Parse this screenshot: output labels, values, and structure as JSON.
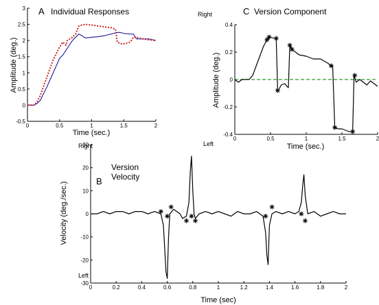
{
  "chart_data": [
    {
      "panel": "A",
      "type": "line",
      "title": "Individual Responses",
      "xlabel": "Time (sec.)",
      "ylabel": "Amplitude (deg.)",
      "xlim": [
        0,
        2
      ],
      "ylim": [
        -0.5,
        3
      ],
      "xticks": [
        "0",
        "0.5",
        "1",
        "1.5",
        "2"
      ],
      "yticks": [
        "-0.5",
        "0",
        "0.5",
        "1",
        "1.5",
        "2",
        "2.5",
        "3"
      ],
      "grid": false,
      "series": [
        {
          "color": "#2a2aa0",
          "dash": "solid",
          "x": [
            0,
            0.1,
            0.15,
            0.2,
            0.3,
            0.4,
            0.5,
            0.55,
            0.6,
            0.65,
            0.7,
            0.75,
            0.8,
            0.85,
            0.9,
            1.0,
            1.1,
            1.2,
            1.3,
            1.4,
            1.45,
            1.5,
            1.6,
            1.65,
            1.7,
            1.8,
            1.9,
            2.0
          ],
          "y": [
            0,
            0,
            0.05,
            0.15,
            0.55,
            1.0,
            1.45,
            1.55,
            1.7,
            1.85,
            2.0,
            2.1,
            2.2,
            2.15,
            2.08,
            2.1,
            2.12,
            2.15,
            2.2,
            2.25,
            2.25,
            2.22,
            2.2,
            2.2,
            2.05,
            2.05,
            2.05,
            2.0
          ]
        },
        {
          "color": "#cc2020",
          "dash": "dotted",
          "x": [
            0,
            0.1,
            0.15,
            0.2,
            0.3,
            0.4,
            0.5,
            0.55,
            0.6,
            0.62,
            0.7,
            0.75,
            0.8,
            0.85,
            0.9,
            1.0,
            1.1,
            1.2,
            1.3,
            1.37,
            1.4,
            1.45,
            1.5,
            1.6,
            1.65,
            1.7,
            1.8,
            1.9,
            2.0
          ],
          "y": [
            0,
            0,
            0.1,
            0.3,
            0.85,
            1.4,
            1.8,
            1.95,
            1.85,
            2.0,
            2.1,
            2.2,
            2.45,
            2.48,
            2.5,
            2.48,
            2.45,
            2.42,
            2.4,
            2.35,
            1.95,
            1.9,
            1.9,
            1.95,
            2.1,
            2.1,
            2.05,
            2.02,
            2.0
          ]
        }
      ]
    },
    {
      "panel": "C",
      "type": "line",
      "title": "Version Component",
      "xlabel": "Time (sec.)",
      "ylabel": "Amplitude (deg.)",
      "xlim": [
        0,
        2
      ],
      "ylim": [
        -0.4,
        0.4
      ],
      "xticks": [
        "0",
        "0.5",
        "1",
        "1.5",
        "2"
      ],
      "yticks": [
        "-0.4",
        "-0.2",
        "0",
        "0.2",
        "0.4"
      ],
      "side_labels": {
        "top": "Right",
        "bottom": "Left"
      },
      "grid": false,
      "reference_line": {
        "y": 0,
        "color": "#2a9a2a",
        "dash": "dashed"
      },
      "series": [
        {
          "color": "#000000",
          "dash": "solid",
          "x": [
            0,
            0.05,
            0.1,
            0.2,
            0.25,
            0.3,
            0.35,
            0.4,
            0.45,
            0.5,
            0.55,
            0.58,
            0.6,
            0.62,
            0.65,
            0.7,
            0.73,
            0.75,
            0.77,
            0.8,
            0.85,
            0.9,
            1.0,
            1.1,
            1.2,
            1.3,
            1.35,
            1.37,
            1.4,
            1.45,
            1.5,
            1.55,
            1.6,
            1.65,
            1.67,
            1.7,
            1.75,
            1.8,
            1.85,
            1.9,
            1.95,
            2.0
          ],
          "y": [
            0,
            -0.02,
            0,
            0,
            0.03,
            0.1,
            0.17,
            0.24,
            0.29,
            0.31,
            0.3,
            0.3,
            -0.08,
            -0.07,
            -0.04,
            -0.03,
            -0.05,
            -0.06,
            0.25,
            0.22,
            0.2,
            0.18,
            0.17,
            0.15,
            0.15,
            0.12,
            0.1,
            0.1,
            -0.35,
            -0.36,
            -0.36,
            -0.37,
            -0.38,
            -0.38,
            0.03,
            -0.02,
            0.0,
            -0.02,
            -0.04,
            -0.01,
            -0.03,
            -0.05
          ]
        }
      ],
      "markers": {
        "x": [
          0.45,
          0.48,
          0.58,
          0.6,
          0.77,
          0.8,
          1.35,
          1.4,
          1.65,
          1.68
        ],
        "y": [
          0.29,
          0.31,
          0.3,
          -0.08,
          0.25,
          0.22,
          0.1,
          -0.35,
          -0.38,
          0.03
        ]
      }
    },
    {
      "panel": "B",
      "type": "line",
      "title": "Version Velocity",
      "xlabel": "Time (sec)",
      "ylabel": "Velocity (deg./sec.)",
      "xlim": [
        0,
        2
      ],
      "ylim": [
        -30,
        30
      ],
      "xticks": [
        "0",
        "0.2",
        "0.4",
        "0.6",
        "0.8",
        "1",
        "1.2",
        "1.4",
        "1.6",
        "1.8",
        "2"
      ],
      "yticks": [
        "-30",
        "-20",
        "-10",
        "0",
        "10",
        "20",
        "30"
      ],
      "side_labels": {
        "top": "Right",
        "bottom": "Left"
      },
      "grid": false,
      "series": [
        {
          "color": "#000000",
          "dash": "solid",
          "x": [
            0,
            0.05,
            0.1,
            0.15,
            0.2,
            0.25,
            0.3,
            0.35,
            0.4,
            0.45,
            0.5,
            0.55,
            0.57,
            0.58,
            0.59,
            0.6,
            0.61,
            0.62,
            0.65,
            0.7,
            0.72,
            0.75,
            0.77,
            0.78,
            0.79,
            0.8,
            0.81,
            0.82,
            0.85,
            0.9,
            0.95,
            1.0,
            1.05,
            1.1,
            1.15,
            1.2,
            1.25,
            1.3,
            1.35,
            1.37,
            1.38,
            1.39,
            1.4,
            1.42,
            1.45,
            1.5,
            1.55,
            1.6,
            1.63,
            1.65,
            1.66,
            1.67,
            1.68,
            1.7,
            1.75,
            1.8,
            1.85,
            1.9,
            1.95,
            2.0
          ],
          "y": [
            0,
            0,
            1,
            0,
            1,
            1,
            0,
            1,
            1,
            0,
            1,
            0,
            -5,
            -15,
            -25,
            -28,
            -10,
            0,
            2,
            0,
            -2,
            -1,
            5,
            18,
            25,
            10,
            0,
            -2,
            0,
            1,
            0,
            1,
            0,
            -1,
            1,
            0,
            0,
            1,
            -1,
            -8,
            -18,
            -22,
            -5,
            0,
            1,
            0,
            1,
            0,
            1,
            5,
            12,
            17,
            8,
            0,
            1,
            -1,
            0,
            1,
            0,
            0
          ]
        }
      ],
      "markers": {
        "x": [
          0.55,
          0.6,
          0.63,
          0.75,
          0.79,
          0.82,
          1.37,
          1.42,
          1.65,
          1.68
        ],
        "y": [
          1,
          -1,
          3,
          -3,
          -1,
          -3,
          -1,
          3,
          0,
          -3
        ]
      }
    }
  ]
}
